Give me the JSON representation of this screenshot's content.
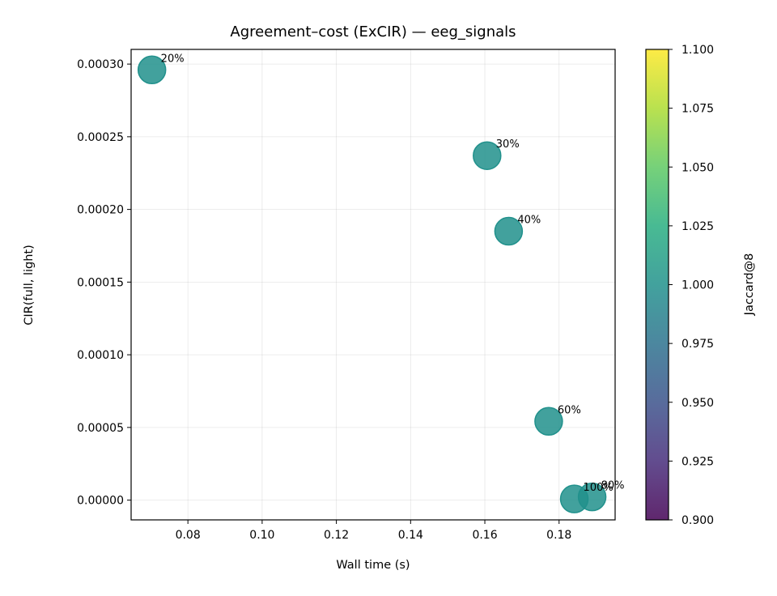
{
  "chart_data": {
    "type": "scatter",
    "title": "Agreement–cost (ExCIR) — eeg_signals",
    "xlabel": "Wall time (s)",
    "ylabel": "CIR(full, light)",
    "xlim": [
      0.0647,
      0.1951
    ],
    "ylim": [
      -1.36e-05,
      0.0003101
    ],
    "xticks": [
      0.08,
      0.1,
      0.12,
      0.14,
      0.16,
      0.18
    ],
    "xtick_labels": [
      "0.08",
      "0.10",
      "0.12",
      "0.14",
      "0.16",
      "0.18"
    ],
    "yticks": [
      0.0,
      5e-05,
      0.0001,
      0.00015,
      0.0002,
      0.00025,
      0.0003
    ],
    "ytick_labels": [
      "0.00000",
      "0.00005",
      "0.00010",
      "0.00015",
      "0.00020",
      "0.00025",
      "0.00030"
    ],
    "grid": true,
    "points": [
      {
        "label": "20%",
        "x": 0.0703,
        "y": 0.000296,
        "color_value": 1.0
      },
      {
        "label": "30%",
        "x": 0.1606,
        "y": 0.000237,
        "color_value": 1.0
      },
      {
        "label": "40%",
        "x": 0.1664,
        "y": 0.000185,
        "color_value": 1.0
      },
      {
        "label": "60%",
        "x": 0.1772,
        "y": 5.42e-05,
        "color_value": 1.0
      },
      {
        "label": "80%",
        "x": 0.1889,
        "y": 2.2e-06,
        "color_value": 1.0
      },
      {
        "label": "100%",
        "x": 0.1841,
        "y": 8e-07,
        "color_value": 1.0
      }
    ],
    "colorbar": {
      "label": "Jaccard@8",
      "range": [
        0.9,
        1.1
      ],
      "ticks": [
        0.9,
        0.925,
        0.95,
        0.975,
        1.0,
        1.025,
        1.05,
        1.075,
        1.1
      ],
      "tick_labels": [
        "0.900",
        "0.925",
        "0.950",
        "0.975",
        "1.000",
        "1.025",
        "1.050",
        "1.075",
        "1.100"
      ],
      "colormap": "viridis"
    },
    "marker_color": "#21918c",
    "marker_alpha": 0.85
  }
}
